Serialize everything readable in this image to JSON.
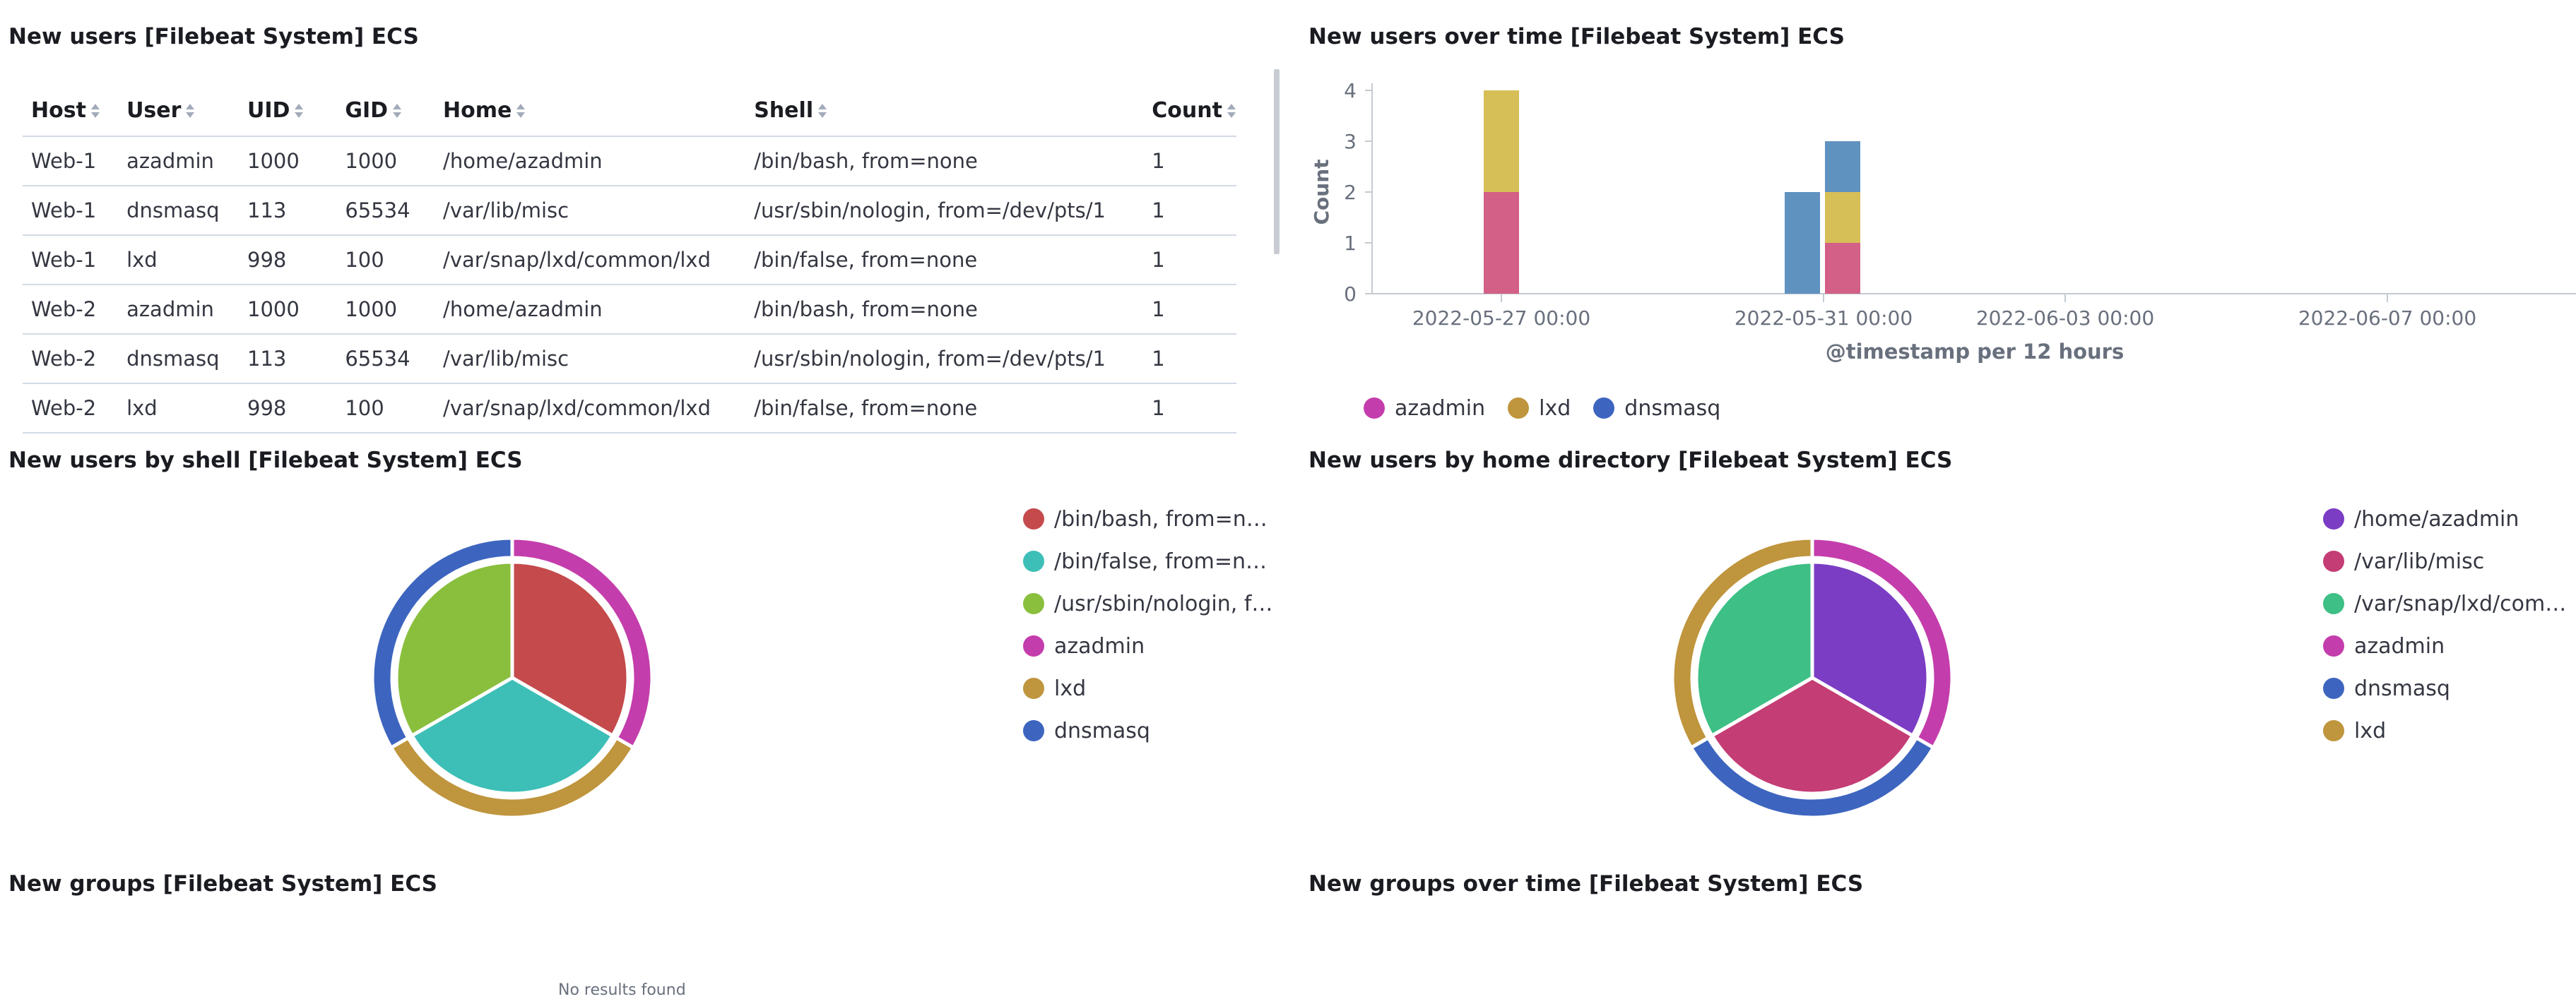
{
  "panels": {
    "new_users": "New users [Filebeat System] ECS",
    "users_over_time": "New users over time [Filebeat System] ECS",
    "users_by_shell": "New users by shell [Filebeat System] ECS",
    "users_by_home": "New users by home directory [Filebeat System] ECS",
    "new_groups": "New groups [Filebeat System] ECS",
    "groups_over_time": "New groups over time [Filebeat System] ECS"
  },
  "table": {
    "columns": [
      "Host",
      "User",
      "UID",
      "GID",
      "Home",
      "Shell",
      "Count"
    ],
    "rows": [
      [
        "Web-1",
        "azadmin",
        "1000",
        "1000",
        "/home/azadmin",
        "/bin/bash, from=none",
        "1"
      ],
      [
        "Web-1",
        "dnsmasq",
        "113",
        "65534",
        "/var/lib/misc",
        "/usr/sbin/nologin, from=/dev/pts/1",
        "1"
      ],
      [
        "Web-1",
        "lxd",
        "998",
        "100",
        "/var/snap/lxd/common/lxd",
        "/bin/false, from=none",
        "1"
      ],
      [
        "Web-2",
        "azadmin",
        "1000",
        "1000",
        "/home/azadmin",
        "/bin/bash, from=none",
        "1"
      ],
      [
        "Web-2",
        "dnsmasq",
        "113",
        "65534",
        "/var/lib/misc",
        "/usr/sbin/nologin, from=/dev/pts/1",
        "1"
      ],
      [
        "Web-2",
        "lxd",
        "998",
        "100",
        "/var/snap/lxd/common/lxd",
        "/bin/false, from=none",
        "1"
      ]
    ]
  },
  "shell_legend": [
    "/bin/bash, from=none",
    "/bin/false, from=none",
    "/usr/sbin/nologin, fr...",
    "azadmin",
    "lxd",
    "dnsmasq"
  ],
  "home_legend": [
    "/home/azadmin",
    "/var/lib/misc",
    "/var/snap/lxd/comm...",
    "azadmin",
    "dnsmasq",
    "lxd"
  ],
  "no_results_fragment": "No results found",
  "colors": {
    "azadmin": "#d36086",
    "lxd": "#d6bf57",
    "dnsmasq": "#6092c0",
    "shell_bash": "#c44a4c",
    "shell_false": "#3dbfb7",
    "shell_nologin": "#8abf3e",
    "home_azadmin": "#7b3dc4",
    "home_misc": "#c43d74",
    "home_snap": "#3dbf85",
    "user_azadmin": "#c43dac",
    "user_lxd": "#bf953d",
    "user_dnsmasq": "#3d65bf"
  },
  "chart_data": [
    {
      "type": "bar",
      "stacked": true,
      "title": "New users over time [Filebeat System] ECS",
      "xlabel": "@timestamp per 12 hours",
      "ylabel": "Count",
      "ylim": [
        0,
        4
      ],
      "yticks": [
        "0",
        "1",
        "2",
        "3",
        "4"
      ],
      "xticks": [
        "2022-05-27 00:00",
        "2022-05-31 00:00",
        "2022-06-03 00:00",
        "2022-06-07 00:00"
      ],
      "x": [
        "2022-05-27 00:00",
        "2022-05-31 00:00",
        "2022-05-31 12:00"
      ],
      "series": [
        {
          "name": "azadmin",
          "values": [
            2,
            0,
            1
          ]
        },
        {
          "name": "lxd",
          "values": [
            2,
            0,
            1
          ]
        },
        {
          "name": "dnsmasq",
          "values": [
            0,
            2,
            1
          ]
        }
      ],
      "legend": "bottom"
    },
    {
      "type": "pie",
      "title": "New users by shell [Filebeat System] ECS",
      "inner_ring": [
        {
          "label": "/bin/bash, from=none",
          "value": 1
        },
        {
          "label": "/bin/false, from=none",
          "value": 1
        },
        {
          "label": "/usr/sbin/nologin, fr...",
          "value": 1
        }
      ],
      "outer_ring": [
        {
          "label": "azadmin",
          "value": 1
        },
        {
          "label": "lxd",
          "value": 1
        },
        {
          "label": "dnsmasq",
          "value": 1
        }
      ],
      "legend": "right"
    },
    {
      "type": "pie",
      "title": "New users by home directory [Filebeat System] ECS",
      "inner_ring": [
        {
          "label": "/home/azadmin",
          "value": 1
        },
        {
          "label": "/var/lib/misc",
          "value": 1
        },
        {
          "label": "/var/snap/lxd/comm...",
          "value": 1
        }
      ],
      "outer_ring": [
        {
          "label": "azadmin",
          "value": 1
        },
        {
          "label": "dnsmasq",
          "value": 1
        },
        {
          "label": "lxd",
          "value": 1
        }
      ],
      "legend": "right"
    }
  ]
}
